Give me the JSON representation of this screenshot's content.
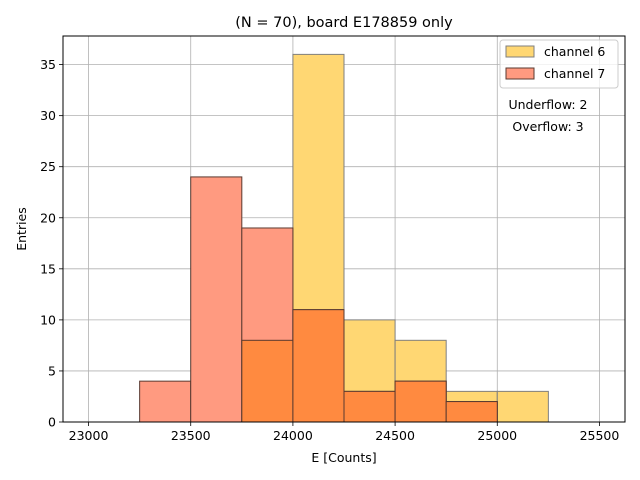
{
  "chart_data": {
    "type": "bar",
    "title": "(N = 70), board E178859 only",
    "xlabel": "E [Counts]",
    "ylabel": "Entries",
    "xlim": [
      22875,
      25625
    ],
    "ylim": [
      0,
      37.8
    ],
    "x_ticks": [
      23000,
      23500,
      24000,
      24500,
      25000,
      25500
    ],
    "y_ticks": [
      0,
      5,
      10,
      15,
      20,
      25,
      30,
      35
    ],
    "grid": true,
    "legend_position": "top-right",
    "bin_width": 250,
    "bin_edges": [
      23250,
      23500,
      23750,
      24000,
      24250,
      24500,
      24750,
      25000,
      25250
    ],
    "series": [
      {
        "name": "channel 6",
        "color": "#ffd773",
        "edge_color": "#7f7f7f",
        "bins": [
          {
            "start": 23750,
            "end": 24000,
            "value": 8
          },
          {
            "start": 24000,
            "end": 24250,
            "value": 36
          },
          {
            "start": 24250,
            "end": 24500,
            "value": 10
          },
          {
            "start": 24500,
            "end": 24750,
            "value": 8
          },
          {
            "start": 24750,
            "end": 25000,
            "value": 3
          },
          {
            "start": 25000,
            "end": 25250,
            "value": 3
          }
        ]
      },
      {
        "name": "channel 7",
        "color": "#ff9a80",
        "edge_color": "#5a3a30",
        "bins": [
          {
            "start": 23250,
            "end": 23500,
            "value": 4
          },
          {
            "start": 23500,
            "end": 23750,
            "value": 24
          },
          {
            "start": 23750,
            "end": 24000,
            "value": 19
          },
          {
            "start": 24000,
            "end": 24250,
            "value": 11
          },
          {
            "start": 24250,
            "end": 24500,
            "value": 3
          },
          {
            "start": 24500,
            "end": 24750,
            "value": 4
          },
          {
            "start": 24750,
            "end": 25000,
            "value": 2
          }
        ]
      }
    ],
    "overlap_color": "#ff8a40",
    "annotations": {
      "underflow": "Underflow: 2",
      "overflow": "Overflow: 3"
    }
  }
}
